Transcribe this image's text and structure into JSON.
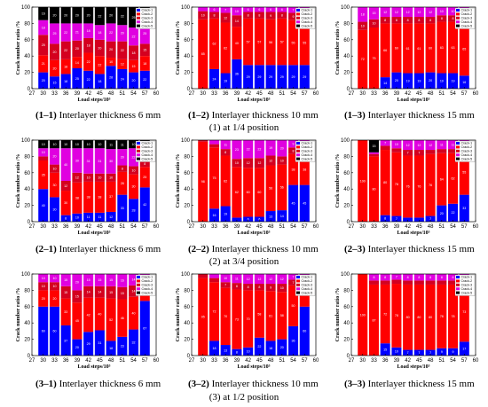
{
  "colors": {
    "Crack-1": "#0000ff",
    "Crack-2": "#ff0000",
    "Crack-3": "#d4001f",
    "Crack-4": "#e000e0",
    "Crack-5": "#000000"
  },
  "legend_entries": [
    "Crack-1",
    "Crack-2",
    "Crack-3",
    "Crack-4",
    "Crack-5"
  ],
  "position_captions": [
    "(1) at 1/4 position",
    "(2) at 3/4 position",
    "(3) at 1/2 position"
  ],
  "chart_data": [
    {
      "id": "1-1",
      "type": "bar",
      "stacked": true,
      "caption_id": "(1–1)",
      "caption_text": "Interlayer thickness 6 mm",
      "xlabel": "Load steps/10³",
      "ylabel": "Crack number ratio /%",
      "xlim": [
        27,
        60
      ],
      "ylim": [
        0,
        100
      ],
      "xticks": [
        27,
        30,
        33,
        36,
        39,
        42,
        45,
        48,
        51,
        54,
        57,
        60
      ],
      "yticks": [
        0,
        20,
        40,
        60,
        80,
        100
      ],
      "categories": [
        30,
        33,
        36,
        39,
        42,
        45,
        48,
        51,
        54,
        57
      ],
      "series": [
        {
          "name": "Crack-1",
          "values": [
            20,
            15,
            18,
            25,
            22,
            18,
            28,
            24,
            20,
            22
          ]
        },
        {
          "name": "Crack-2",
          "values": [
            21,
            20,
            18,
            14,
            22,
            22,
            10,
            12,
            15,
            18
          ]
        },
        {
          "name": "Crack-3",
          "values": [
            25,
            20,
            22,
            20,
            18,
            20,
            20,
            22,
            18,
            15
          ]
        },
        {
          "name": "Crack-4",
          "values": [
            18,
            25,
            22,
            21,
            18,
            18,
            22,
            20,
            22,
            25
          ]
        },
        {
          "name": "Crack-5",
          "values": [
            16,
            20,
            20,
            20,
            20,
            22,
            20,
            22,
            25,
            20
          ]
        }
      ]
    },
    {
      "id": "1-2",
      "type": "bar",
      "stacked": true,
      "caption_id": "(1–2)",
      "caption_text": "Interlayer thickness 10 mm",
      "xlabel": "Load steps/10³",
      "ylabel": "Crack number ratio /%",
      "xlim": [
        27,
        60
      ],
      "ylim": [
        0,
        100
      ],
      "xticks": [
        27,
        30,
        33,
        36,
        39,
        42,
        45,
        48,
        51,
        54,
        57,
        60
      ],
      "yticks": [
        0,
        20,
        40,
        60,
        80,
        100
      ],
      "categories": [
        30,
        33,
        36,
        39,
        42,
        45,
        48,
        51,
        54,
        57
      ],
      "series": [
        {
          "name": "Crack-1",
          "values": [
            0,
            24,
            19,
            36,
            29,
            29,
            29,
            29,
            29,
            29
          ]
        },
        {
          "name": "Crack-2",
          "values": [
            85,
            62,
            62,
            40,
            57,
            57,
            56,
            57,
            55,
            55
          ]
        },
        {
          "name": "Crack-3",
          "values": [
            10,
            8,
            12,
            14,
            8,
            8,
            9,
            8,
            9,
            9
          ]
        },
        {
          "name": "Crack-4",
          "values": [
            5,
            6,
            7,
            10,
            6,
            6,
            6,
            6,
            7,
            7
          ]
        },
        {
          "name": "Crack-5",
          "values": [
            0,
            0,
            0,
            0,
            0,
            0,
            0,
            0,
            0,
            0
          ]
        }
      ]
    },
    {
      "id": "1-3",
      "type": "bar",
      "stacked": true,
      "caption_id": "(1–3)",
      "caption_text": "Interlayer thickness 15 mm",
      "xlabel": "Load steps/10³",
      "ylabel": "Crack number ratio /%",
      "xlim": [
        27,
        60
      ],
      "ylim": [
        0,
        100
      ],
      "xticks": [
        27,
        30,
        33,
        36,
        39,
        42,
        45,
        48,
        51,
        54,
        57,
        60
      ],
      "yticks": [
        0,
        20,
        40,
        60,
        80,
        100
      ],
      "categories": [
        30,
        33,
        36,
        39,
        42,
        45,
        48,
        51,
        54,
        57
      ],
      "series": [
        {
          "name": "Crack-1",
          "values": [
            0,
            0,
            14,
            20,
            19,
            19,
            20,
            19,
            19,
            16
          ]
        },
        {
          "name": "Crack-2",
          "values": [
            72,
            75,
            66,
            60,
            61,
            61,
            60,
            63,
            63,
            65
          ]
        },
        {
          "name": "Crack-3",
          "values": [
            10,
            10,
            8,
            8,
            8,
            8,
            8,
            8,
            8,
            8
          ]
        },
        {
          "name": "Crack-4",
          "values": [
            18,
            15,
            12,
            12,
            12,
            12,
            12,
            10,
            10,
            11
          ]
        },
        {
          "name": "Crack-5",
          "values": [
            0,
            0,
            0,
            0,
            0,
            0,
            0,
            0,
            0,
            0
          ]
        }
      ]
    },
    {
      "id": "2-1",
      "type": "bar",
      "stacked": true,
      "caption_id": "(2–1)",
      "caption_text": "Interlayer thickness 6 mm",
      "xlabel": "Load steps/10³",
      "ylabel": "Crack number ratio /%",
      "xlim": [
        27,
        60
      ],
      "ylim": [
        0,
        100
      ],
      "xticks": [
        27,
        30,
        33,
        36,
        39,
        42,
        45,
        48,
        51,
        54,
        57,
        60
      ],
      "yticks": [
        0,
        20,
        40,
        60,
        80,
        100
      ],
      "categories": [
        30,
        33,
        36,
        39,
        42,
        45,
        48,
        51,
        54,
        57
      ],
      "series": [
        {
          "name": "Crack-1",
          "values": [
            40,
            30,
            8,
            10,
            11,
            11,
            12,
            33,
            28,
            42
          ]
        },
        {
          "name": "Crack-2",
          "values": [
            35,
            30,
            30,
            38,
            38,
            38,
            37,
            28,
            30,
            25
          ]
        },
        {
          "name": "Crack-3",
          "values": [
            5,
            10,
            12,
            12,
            10,
            10,
            10,
            8,
            10,
            8
          ]
        },
        {
          "name": "Crack-4",
          "values": [
            10,
            20,
            40,
            30,
            31,
            31,
            30,
            20,
            22,
            15
          ]
        },
        {
          "name": "Crack-5",
          "values": [
            10,
            10,
            10,
            10,
            10,
            10,
            11,
            11,
            10,
            10
          ]
        }
      ]
    },
    {
      "id": "2-2",
      "type": "bar",
      "stacked": true,
      "caption_id": "(2–2)",
      "caption_text": "Interlayer thickness 10 mm",
      "xlabel": "Load steps/10³",
      "ylabel": "Crack number ratio /%",
      "xlim": [
        27,
        60
      ],
      "ylim": [
        0,
        100
      ],
      "xticks": [
        27,
        30,
        33,
        36,
        39,
        42,
        45,
        48,
        51,
        54,
        57,
        60
      ],
      "yticks": [
        0,
        20,
        40,
        60,
        80,
        100
      ],
      "categories": [
        30,
        33,
        36,
        39,
        42,
        45,
        48,
        51,
        54,
        57
      ],
      "series": [
        {
          "name": "Crack-1",
          "values": [
            0,
            16,
            19,
            5,
            6,
            6,
            13,
            14,
            45,
            45
          ]
        },
        {
          "name": "Crack-2",
          "values": [
            98,
            75,
            62,
            62,
            60,
            60,
            56,
            56,
            38,
            38
          ]
        },
        {
          "name": "Crack-3",
          "values": [
            2,
            4,
            8,
            10,
            12,
            12,
            12,
            10,
            8,
            8
          ]
        },
        {
          "name": "Crack-4",
          "values": [
            0,
            5,
            11,
            23,
            22,
            22,
            19,
            20,
            9,
            9
          ]
        },
        {
          "name": "Crack-5",
          "values": [
            0,
            0,
            0,
            0,
            0,
            0,
            0,
            0,
            0,
            0
          ]
        }
      ]
    },
    {
      "id": "2-3",
      "type": "bar",
      "stacked": true,
      "caption_id": "(2–3)",
      "caption_text": "Interlayer thickness 15 mm",
      "xlabel": "Load steps/10³",
      "ylabel": "Crack number ratio /%",
      "xlim": [
        27,
        60
      ],
      "ylim": [
        0,
        100
      ],
      "xticks": [
        27,
        30,
        33,
        36,
        39,
        42,
        45,
        48,
        51,
        54,
        57,
        60
      ],
      "yticks": [
        0,
        20,
        40,
        60,
        80,
        100
      ],
      "categories": [
        30,
        33,
        36,
        39,
        42,
        45,
        48,
        51,
        54,
        57
      ],
      "series": [
        {
          "name": "Crack-1",
          "values": [
            0,
            0,
            8,
            7,
            5,
            5,
            7,
            20,
            22,
            33
          ]
        },
        {
          "name": "Crack-2",
          "values": [
            100,
            80,
            80,
            78,
            76,
            76,
            76,
            64,
            62,
            55
          ]
        },
        {
          "name": "Crack-3",
          "values": [
            0,
            3,
            5,
            5,
            7,
            7,
            5,
            5,
            5,
            4
          ]
        },
        {
          "name": "Crack-4",
          "values": [
            0,
            2,
            7,
            10,
            12,
            12,
            12,
            11,
            11,
            8
          ]
        },
        {
          "name": "Crack-5",
          "values": [
            0,
            15,
            0,
            0,
            0,
            0,
            0,
            0,
            0,
            0
          ]
        }
      ]
    },
    {
      "id": "3-1",
      "type": "bar",
      "stacked": true,
      "caption_id": "(3–1)",
      "caption_text": "Interlayer thickness 6 mm",
      "xlabel": "Load steps/10³",
      "ylabel": "Crack number ratio /%",
      "xlim": [
        27,
        60
      ],
      "ylim": [
        0,
        100
      ],
      "xticks": [
        27,
        30,
        33,
        36,
        39,
        42,
        45,
        48,
        51,
        54,
        57,
        60
      ],
      "yticks": [
        0,
        20,
        40,
        60,
        80,
        100
      ],
      "categories": [
        30,
        33,
        36,
        39,
        42,
        45,
        48,
        51,
        54,
        57
      ],
      "series": [
        {
          "name": "Crack-1",
          "values": [
            60,
            60,
            37,
            20,
            29,
            31,
            18,
            23,
            32,
            67
          ]
        },
        {
          "name": "Crack-2",
          "values": [
            20,
            20,
            33,
            45,
            42,
            40,
            52,
            46,
            40,
            18
          ]
        },
        {
          "name": "Crack-3",
          "values": [
            10,
            10,
            15,
            15,
            14,
            14,
            15,
            15,
            14,
            8
          ]
        },
        {
          "name": "Crack-4",
          "values": [
            10,
            10,
            15,
            20,
            15,
            15,
            15,
            16,
            14,
            7
          ]
        },
        {
          "name": "Crack-5",
          "values": [
            0,
            0,
            0,
            0,
            0,
            0,
            0,
            0,
            0,
            0
          ]
        }
      ]
    },
    {
      "id": "3-2",
      "type": "bar",
      "stacked": true,
      "caption_id": "(3–2)",
      "caption_text": "Interlayer thickness 10 mm",
      "xlabel": "Load steps/10³",
      "ylabel": "Crack number ratio /%",
      "xlim": [
        27,
        60
      ],
      "ylim": [
        0,
        100
      ],
      "xticks": [
        27,
        30,
        33,
        36,
        39,
        42,
        45,
        48,
        51,
        54,
        57,
        60
      ],
      "yticks": [
        0,
        20,
        40,
        60,
        80,
        100
      ],
      "categories": [
        30,
        33,
        36,
        39,
        42,
        45,
        48,
        51,
        54,
        57
      ],
      "series": [
        {
          "name": "Crack-1",
          "values": [
            0,
            18,
            13,
            8,
            10,
            22,
            18,
            20,
            36,
            60
          ]
        },
        {
          "name": "Crack-2",
          "values": [
            95,
            72,
            70,
            73,
            70,
            58,
            61,
            58,
            50,
            30
          ]
        },
        {
          "name": "Crack-3",
          "values": [
            5,
            5,
            7,
            8,
            8,
            8,
            9,
            10,
            7,
            5
          ]
        },
        {
          "name": "Crack-4",
          "values": [
            0,
            5,
            10,
            11,
            12,
            12,
            12,
            12,
            7,
            5
          ]
        },
        {
          "name": "Crack-5",
          "values": [
            0,
            0,
            0,
            0,
            0,
            0,
            0,
            0,
            0,
            0
          ]
        }
      ]
    },
    {
      "id": "3-3",
      "type": "bar",
      "stacked": true,
      "caption_id": "(3–3)",
      "caption_text": "Interlayer thickness 15 mm",
      "xlabel": "Load steps/10³",
      "ylabel": "Crack number ratio /%",
      "xlim": [
        27,
        60
      ],
      "ylim": [
        0,
        100
      ],
      "xticks": [
        27,
        30,
        33,
        36,
        39,
        42,
        45,
        48,
        51,
        54,
        57,
        60
      ],
      "yticks": [
        0,
        20,
        40,
        60,
        80,
        100
      ],
      "categories": [
        30,
        33,
        36,
        39,
        42,
        45,
        48,
        51,
        54,
        57
      ],
      "series": [
        {
          "name": "Crack-1",
          "values": [
            0,
            0,
            15,
            10,
            7,
            7,
            7,
            9,
            9,
            17
          ]
        },
        {
          "name": "Crack-2",
          "values": [
            100,
            87,
            72,
            78,
            80,
            80,
            80,
            78,
            78,
            73
          ]
        },
        {
          "name": "Crack-3",
          "values": [
            0,
            5,
            5,
            5,
            5,
            5,
            5,
            5,
            5,
            4
          ]
        },
        {
          "name": "Crack-4",
          "values": [
            0,
            8,
            8,
            7,
            8,
            8,
            8,
            8,
            8,
            6
          ]
        },
        {
          "name": "Crack-5",
          "values": [
            0,
            0,
            0,
            0,
            0,
            0,
            0,
            0,
            0,
            0
          ]
        }
      ]
    }
  ]
}
